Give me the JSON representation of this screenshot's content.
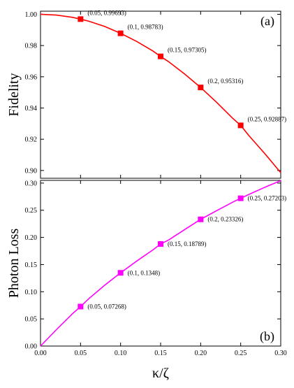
{
  "chart_data": [
    {
      "type": "line",
      "panel_label": "(a)",
      "ylabel": "Fidelity",
      "xlabel": "",
      "xlim": [
        0.0,
        0.3
      ],
      "ylim": [
        0.895,
        1.002
      ],
      "x_ticks": [
        "0.00",
        "0.05",
        "0.10",
        "0.15",
        "0.20",
        "0.25",
        "0.30"
      ],
      "y_ticks": [
        "0.90",
        "0.92",
        "0.94",
        "0.96",
        "0.98",
        "1.00"
      ],
      "y_tick_values": [
        0.9,
        0.92,
        0.94,
        0.96,
        0.98,
        1.0
      ],
      "color": "#ff0000",
      "curve": {
        "x": [
          0.0,
          0.02,
          0.04,
          0.05,
          0.06,
          0.08,
          0.1,
          0.12,
          0.14,
          0.15,
          0.16,
          0.18,
          0.2,
          0.22,
          0.24,
          0.25,
          0.26,
          0.28,
          0.3
        ],
        "y": [
          1.0,
          0.99951,
          0.99805,
          0.99693,
          0.99563,
          0.99226,
          0.98783,
          0.98266,
          0.97662,
          0.97305,
          0.96963,
          0.96178,
          0.95316,
          0.94362,
          0.93342,
          0.92887,
          0.92248,
          0.91085,
          0.8986
        ]
      },
      "points": [
        {
          "x": 0.05,
          "y": 0.99693,
          "label": "(0.05, 0.99693)"
        },
        {
          "x": 0.1,
          "y": 0.98783,
          "label": "(0.1, 0.98783)"
        },
        {
          "x": 0.15,
          "y": 0.97305,
          "label": "(0.15, 0.97305)"
        },
        {
          "x": 0.2,
          "y": 0.95316,
          "label": "(0.2, 0.95316)"
        },
        {
          "x": 0.25,
          "y": 0.92887,
          "label": "(0.25, 0.92887)"
        }
      ]
    },
    {
      "type": "line",
      "panel_label": "(b)",
      "ylabel": "Photon Loss",
      "xlabel": "κ/ζ",
      "xlim": [
        0.0,
        0.3
      ],
      "ylim": [
        0.0,
        0.305
      ],
      "x_ticks": [
        "0.00",
        "0.05",
        "0.10",
        "0.15",
        "0.20",
        "0.25",
        "0.30"
      ],
      "y_ticks": [
        "0.00",
        "0.05",
        "0.10",
        "0.15",
        "0.20",
        "0.25",
        "0.30"
      ],
      "y_tick_values": [
        0.0,
        0.05,
        0.1,
        0.15,
        0.2,
        0.25,
        0.3
      ],
      "color": "#ff00ff",
      "curve": {
        "x": [
          0.0,
          0.02,
          0.04,
          0.05,
          0.06,
          0.08,
          0.1,
          0.12,
          0.14,
          0.15,
          0.16,
          0.18,
          0.2,
          0.22,
          0.24,
          0.25,
          0.26,
          0.28,
          0.3
        ],
        "y": [
          0.0,
          0.0304,
          0.0596,
          0.07268,
          0.0868,
          0.1118,
          0.1348,
          0.1563,
          0.1766,
          0.18789,
          0.1952,
          0.2144,
          0.23326,
          0.2493,
          0.2649,
          0.27203,
          0.2789,
          0.2922,
          0.3045
        ]
      },
      "points": [
        {
          "x": 0.05,
          "y": 0.07268,
          "label": "(0.05, 0.07268)"
        },
        {
          "x": 0.1,
          "y": 0.1348,
          "label": "(0.1, 0.1348)"
        },
        {
          "x": 0.15,
          "y": 0.18789,
          "label": "(0.15, 0.18789)"
        },
        {
          "x": 0.2,
          "y": 0.23326,
          "label": "(0.2, 0.23326)"
        },
        {
          "x": 0.25,
          "y": 0.27203,
          "label": "(0.25, 0.27203)"
        }
      ]
    }
  ]
}
